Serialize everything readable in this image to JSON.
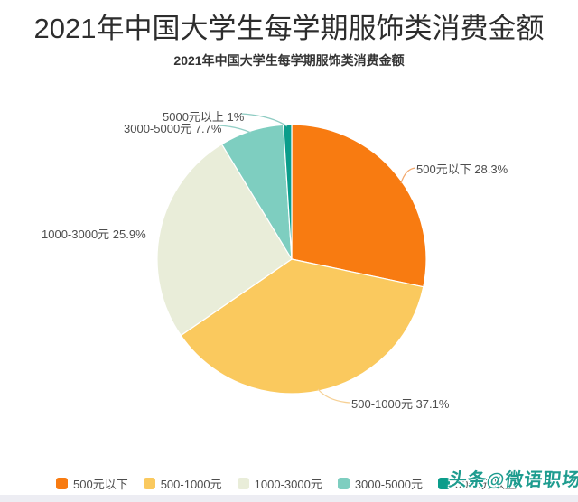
{
  "page": {
    "title": "2021年中国大学生每学期服饰类消费金额",
    "subtitle": "2021年中国大学生每学期服饰类消费金额",
    "watermark": "头条@微语职场"
  },
  "colors": {
    "title_text": "#2d2d2d",
    "label_text": "#4d4d4d",
    "watermark": "#1e9c8f",
    "bottom_strip": "#ededf3",
    "background": "#ffffff"
  },
  "chart_data": {
    "type": "pie",
    "title": "2021年中国大学生每学期服饰类消费金额",
    "direction": "clockwise",
    "start_angle_deg": 0,
    "legend_position": "bottom",
    "center": [
      323,
      287
    ],
    "radius": 149,
    "slices": [
      {
        "label": "500元以下",
        "value": 28.3,
        "pct_display": "28.3%",
        "display": "500元以下 28.3%",
        "color": "#f87b11"
      },
      {
        "label": "500-1000元",
        "value": 37.1,
        "pct_display": "37.1%",
        "display": "500-1000元 37.1%",
        "color": "#fac95e"
      },
      {
        "label": "1000-3000元",
        "value": 25.9,
        "pct_display": "25.9%",
        "display": "1000-3000元 25.9%",
        "color": "#e9edd9"
      },
      {
        "label": "3000-5000元",
        "value": 7.7,
        "pct_display": "7.7%",
        "display": "3000-5000元 7.7%",
        "color": "#7ecec0"
      },
      {
        "label": "5000元以上",
        "value": 1,
        "pct_display": "1%",
        "display": "5000元以上 1%",
        "color": "#0b9d8b"
      }
    ]
  }
}
